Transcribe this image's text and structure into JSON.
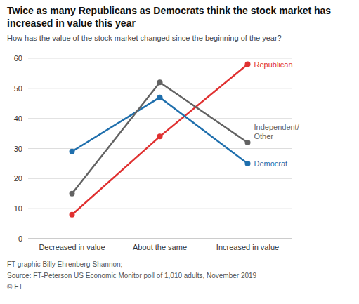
{
  "chart_data": {
    "type": "line",
    "title": "Twice as many Republicans as Democrats think the stock market has increased in value this year",
    "subtitle": "How has the value of the stock market changed since the beginning of the year?",
    "annotations": [
      "FT graphic Billy Ehrenberg-Shannon;",
      "Source: FT-Peterson US Economic Monitor poll of 1,010 adults, November 2019",
      "© FT"
    ],
    "categories": [
      "Decreased in value",
      "About the same",
      "Increased in value"
    ],
    "series": [
      {
        "name": "Republican",
        "color": "#e03030",
        "values": [
          8,
          34,
          58
        ]
      },
      {
        "name": "Democrat",
        "color": "#1f6fad",
        "values": [
          29,
          47,
          25
        ]
      },
      {
        "name": "Independent/\nOther",
        "color": "#636363",
        "values": [
          15,
          52,
          32
        ]
      }
    ],
    "marker": "circle",
    "ylim": [
      0,
      60
    ],
    "yticks": [
      0,
      10,
      20,
      30,
      40,
      50,
      60
    ],
    "grid": true
  }
}
